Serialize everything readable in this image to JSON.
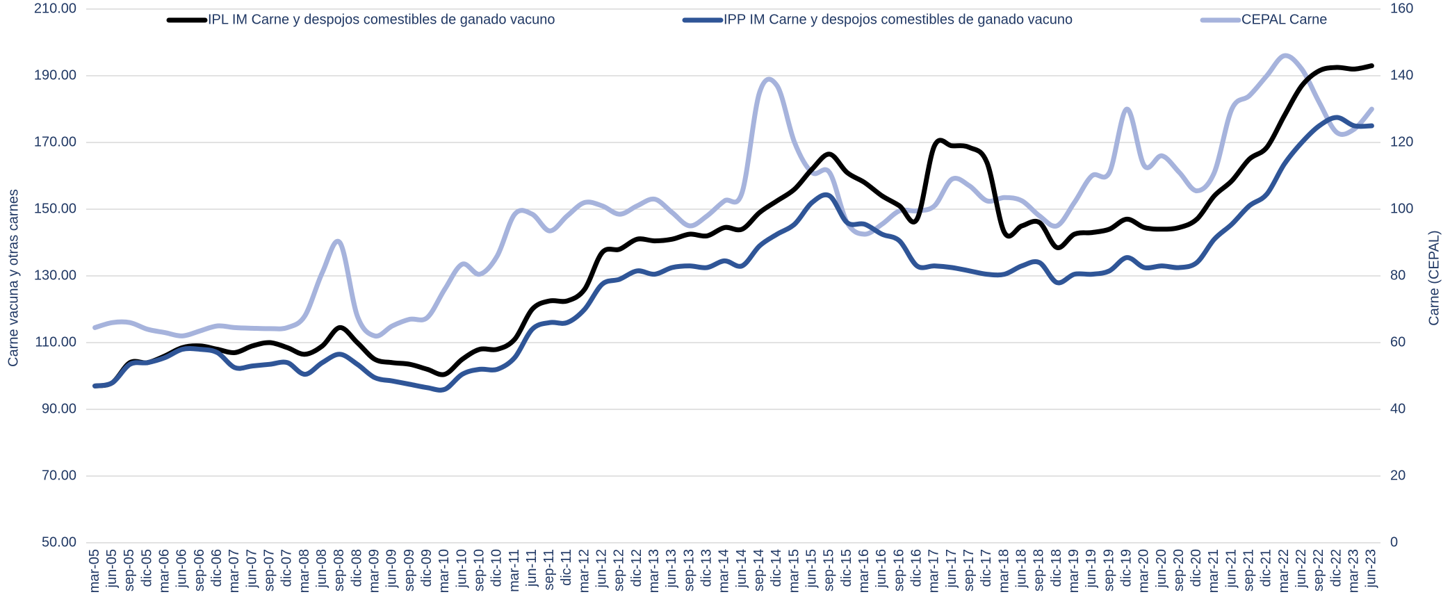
{
  "chart_data": {
    "type": "line",
    "y_label": "Carne vacuna y otras carnes",
    "y2_label": "Carne (CEPAL)",
    "categories": [
      "mar-05",
      "jun-05",
      "sep-05",
      "dic-05",
      "mar-06",
      "jun-06",
      "sep-06",
      "dic-06",
      "mar-07",
      "jun-07",
      "sep-07",
      "dic-07",
      "mar-08",
      "jun-08",
      "sep-08",
      "dic-08",
      "mar-09",
      "jun-09",
      "sep-09",
      "dic-09",
      "mar-10",
      "jun-10",
      "sep-10",
      "dic-10",
      "mar-11",
      "jun-11",
      "sep-11",
      "dic-11",
      "mar-12",
      "jun-12",
      "sep-12",
      "dic-12",
      "mar-13",
      "jun-13",
      "sep-13",
      "dic-13",
      "mar-14",
      "jun-14",
      "sep-14",
      "dic-14",
      "mar-15",
      "jun-15",
      "sep-15",
      "dic-15",
      "mar-16",
      "jun-16",
      "sep-16",
      "dic-16",
      "mar-17",
      "jun-17",
      "sep-17",
      "dic-17",
      "mar-18",
      "jun-18",
      "sep-18",
      "dic-18",
      "mar-19",
      "jun-19",
      "sep-19",
      "dic-19",
      "mar-20",
      "jun-20",
      "sep-20",
      "dic-20",
      "mar-21",
      "jun-21",
      "sep-21",
      "dic-21",
      "mar-22",
      "jun-22",
      "sep-22",
      "dic-22",
      "mar-23",
      "jun-23"
    ],
    "series": [
      {
        "name": "IPL IM Carne y despojos comestibles de ganado vacuno",
        "color": "#000000",
        "values": [
          97,
          98,
          104,
          104,
          106,
          108.5,
          109,
          108,
          107,
          109,
          110,
          108.5,
          106.5,
          109,
          114.5,
          110,
          105,
          104,
          103.5,
          102,
          100.5,
          105,
          108,
          108,
          111,
          120,
          122.5,
          122.5,
          126,
          137,
          138,
          141,
          140.5,
          141,
          142.5,
          142,
          144.5,
          144,
          149,
          152.5,
          156,
          162,
          166.5,
          161,
          158,
          154,
          151,
          147,
          169,
          169,
          168.5,
          164,
          143,
          145,
          146,
          138.5,
          142.5,
          143,
          144,
          147,
          144.5,
          144,
          144.5,
          147,
          154,
          158.5,
          165,
          168.5,
          178,
          187,
          191.5,
          192.5,
          192,
          193
        ]
      },
      {
        "name": "IPP IM Carne y despojos comestibles de ganado vacuno",
        "color": "#2f5597",
        "values": [
          97,
          98,
          103.5,
          104,
          105.5,
          108,
          108,
          107,
          102.5,
          103,
          103.5,
          104,
          100.5,
          104,
          106.5,
          103.5,
          99.5,
          98.5,
          97.5,
          96.5,
          96,
          100.5,
          102,
          102,
          105.5,
          114,
          116,
          116,
          120,
          127.5,
          129,
          131.5,
          130.5,
          132.5,
          133,
          132.5,
          134.5,
          133,
          139,
          142.5,
          145.5,
          152,
          154,
          146,
          145.5,
          142.5,
          140.5,
          133,
          133,
          132.5,
          131.5,
          130.5,
          130.5,
          133,
          134,
          128,
          130.5,
          130.5,
          131.5,
          135.5,
          132.5,
          133,
          132.5,
          134,
          141,
          145.5,
          151,
          154.5,
          163.5,
          170,
          175,
          177.5,
          175,
          175
        ]
      },
      {
        "name": "CEPAL Carne",
        "color": "#a6b3dc",
        "axis": "y2",
        "values": [
          64.5,
          66,
          66,
          64,
          63,
          62,
          63.5,
          65,
          64.5,
          64.3,
          64.2,
          64.5,
          68,
          81,
          90,
          68,
          62,
          65,
          67,
          67.5,
          76,
          83.5,
          80.5,
          86,
          98.5,
          98.5,
          93.5,
          98,
          102,
          101,
          98.5,
          101,
          103,
          99,
          95,
          98,
          102.5,
          105,
          135,
          137,
          120,
          111,
          111,
          96,
          92.5,
          95.5,
          99.5,
          99.5,
          101,
          109,
          107,
          102.5,
          103.5,
          102.5,
          98,
          95,
          102,
          110,
          111,
          130,
          113,
          116,
          111,
          105.5,
          111,
          130,
          134,
          140,
          146,
          142,
          132,
          123,
          124,
          130
        ]
      }
    ],
    "ylim": [
      50,
      210
    ],
    "yticks": [
      {
        "value": 50,
        "label": "50.00"
      },
      {
        "value": 70,
        "label": "70.00"
      },
      {
        "value": 90,
        "label": "90.00"
      },
      {
        "value": 110,
        "label": "110.00"
      },
      {
        "value": 130,
        "label": "130.00"
      },
      {
        "value": 150,
        "label": "150.00"
      },
      {
        "value": 170,
        "label": "170.00"
      },
      {
        "value": 190,
        "label": "190.00"
      },
      {
        "value": 210,
        "label": "210.00"
      }
    ],
    "y2lim": [
      0,
      160
    ],
    "y2ticks": [
      0,
      20,
      40,
      60,
      80,
      100,
      120,
      140,
      160
    ],
    "grid": true,
    "legend": "top"
  }
}
